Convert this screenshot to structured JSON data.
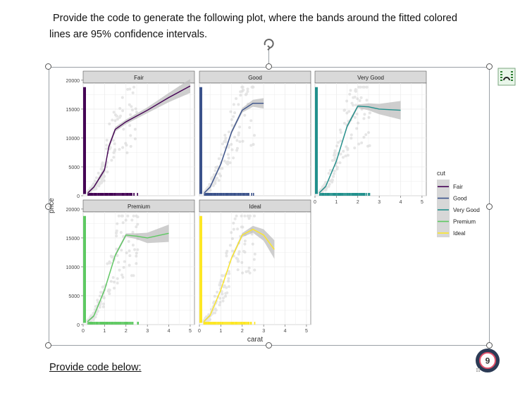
{
  "document": {
    "prompt_line1": "Provide the code to generate the following plot, where the bands around the fitted colored",
    "prompt_line2": "lines are 95% confidence intervals.",
    "code_label": "Provide code below:",
    "badge_count": "9"
  },
  "icons": {
    "rotate": "rotate-handle-icon",
    "layout_options": "layout-options-icon",
    "badge": "notification-badge-icon"
  },
  "chart_data": {
    "type": "scatter",
    "xlabel": "carat",
    "ylabel": "price",
    "xlim": [
      0,
      5.2
    ],
    "ylim": [
      0,
      19500
    ],
    "x_ticks": [
      "0",
      "1",
      "2",
      "3",
      "4",
      "5"
    ],
    "y_ticks": [
      "0",
      "5000",
      "10000",
      "15000",
      "20000"
    ],
    "grid": true,
    "legend_title": "cut",
    "legend_position": "right",
    "legend": [
      "Fair",
      "Good",
      "Very Good",
      "Premium",
      "Ideal"
    ],
    "colors": {
      "Fair": "#440154",
      "Good": "#3b528b",
      "Very Good": "#21908c",
      "Premium": "#5ec962",
      "Ideal": "#fde725",
      "band": "#bdbdbd",
      "points": "#b8b8b8",
      "strip": "#d9d9d9",
      "panel": "#ffffff",
      "grid": "#ececec"
    },
    "panels": [
      {
        "name": "Fair",
        "xrange": [
          0.2,
          5.0
        ],
        "curve": [
          [
            0.22,
            500
          ],
          [
            0.5,
            1500
          ],
          [
            1.0,
            4500
          ],
          [
            1.2,
            8500
          ],
          [
            1.5,
            11500
          ],
          [
            2.0,
            12800
          ],
          [
            3.0,
            14800
          ],
          [
            4.0,
            17000
          ],
          [
            5.0,
            19000
          ]
        ],
        "band_halfwidth": [
          200,
          250,
          400,
          500,
          400,
          400,
          500,
          800,
          1200
        ]
      },
      {
        "name": "Good",
        "xrange": [
          0.23,
          3.0
        ],
        "curve": [
          [
            0.23,
            500
          ],
          [
            0.5,
            1500
          ],
          [
            1.0,
            5500
          ],
          [
            1.5,
            11000
          ],
          [
            2.0,
            14800
          ],
          [
            2.5,
            16000
          ],
          [
            3.0,
            16000
          ]
        ],
        "band_halfwidth": [
          150,
          200,
          300,
          350,
          400,
          600,
          900
        ]
      },
      {
        "name": "Very Good",
        "xrange": [
          0.2,
          4.0
        ],
        "curve": [
          [
            0.2,
            500
          ],
          [
            0.5,
            1600
          ],
          [
            1.0,
            6000
          ],
          [
            1.5,
            12000
          ],
          [
            2.0,
            15500
          ],
          [
            2.5,
            15400
          ],
          [
            3.0,
            15000
          ],
          [
            4.0,
            14800
          ]
        ],
        "band_halfwidth": [
          150,
          200,
          300,
          350,
          300,
          600,
          900,
          1600
        ]
      },
      {
        "name": "Premium",
        "xrange": [
          0.2,
          4.0
        ],
        "curve": [
          [
            0.2,
            500
          ],
          [
            0.5,
            1500
          ],
          [
            1.0,
            6000
          ],
          [
            1.5,
            12000
          ],
          [
            2.0,
            15500
          ],
          [
            2.5,
            15300
          ],
          [
            3.0,
            15000
          ],
          [
            4.0,
            15800
          ]
        ],
        "band_halfwidth": [
          150,
          200,
          300,
          300,
          300,
          500,
          900,
          1500
        ]
      },
      {
        "name": "Ideal",
        "xrange": [
          0.2,
          3.5
        ],
        "curve": [
          [
            0.2,
            500
          ],
          [
            0.5,
            1600
          ],
          [
            1.0,
            6000
          ],
          [
            1.5,
            11500
          ],
          [
            2.0,
            15500
          ],
          [
            2.5,
            16500
          ],
          [
            3.0,
            15500
          ],
          [
            3.5,
            13000
          ]
        ],
        "band_halfwidth": [
          150,
          200,
          250,
          300,
          350,
          600,
          1000,
          1600
        ]
      }
    ]
  }
}
